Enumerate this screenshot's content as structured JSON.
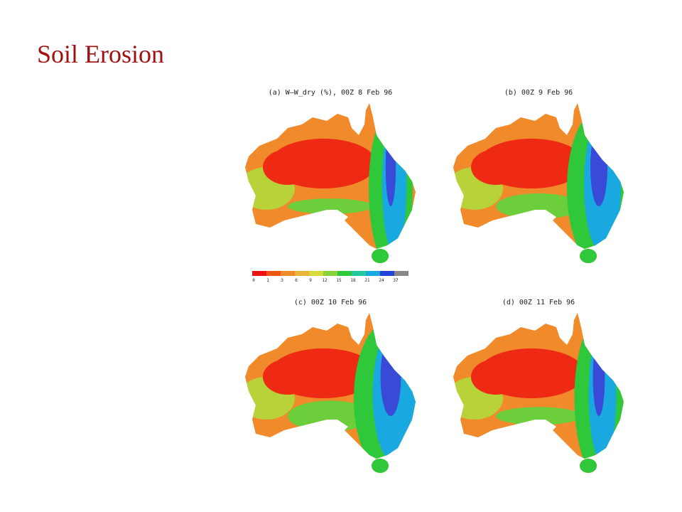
{
  "title": "Soil Erosion",
  "panels": [
    {
      "label": "(a) W–W_dry (%), 00Z 8 Feb 96"
    },
    {
      "label": "(b) 00Z 9 Feb 96"
    },
    {
      "label": "(c) 00Z 10 Feb 96"
    },
    {
      "label": "(d) 00Z 11 Feb 96"
    }
  ],
  "legend": {
    "ticks": [
      0,
      1,
      3,
      6,
      9,
      12,
      15,
      18,
      21,
      24,
      37
    ],
    "colors": [
      "#ee1111",
      "#ee5511",
      "#f28a2a",
      "#e8b53a",
      "#d8dc3a",
      "#86d43a",
      "#2ec83a",
      "#22c8a0",
      "#1aa8e0",
      "#2244dd",
      "#888888"
    ]
  }
}
